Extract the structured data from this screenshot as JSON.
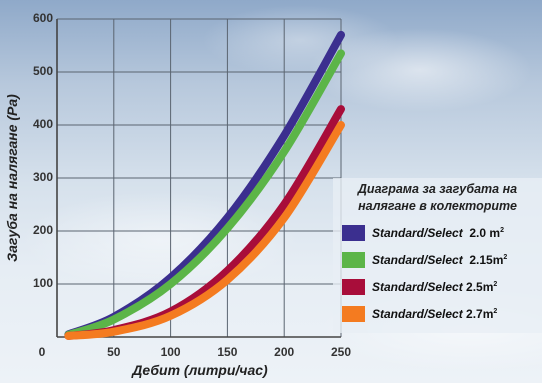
{
  "chart_data": {
    "type": "line",
    "title": "Диаграма за загубата на налягане в колекторите",
    "xlabel": "Дебит (литри/час)",
    "ylabel": "Загуба на налягане (Pa)",
    "xlim": [
      0,
      250
    ],
    "ylim": [
      0,
      600
    ],
    "xticks": [
      "0",
      "50",
      "100",
      "150",
      "200",
      "250"
    ],
    "yticks": [
      "100",
      "200",
      "300",
      "400",
      "500",
      "600"
    ],
    "grid": true,
    "legend_position": "bottom-right",
    "x": [
      10,
      50,
      100,
      150,
      200,
      250
    ],
    "series": [
      {
        "name_main": "Standard/Select",
        "name_area": "2.0 m",
        "sup": "2",
        "color": "#3b2f8f",
        "values": [
          5,
          38,
          112,
          225,
          380,
          570
        ]
      },
      {
        "name_main": "Standard/Select",
        "name_area": "2.15m",
        "sup": "2",
        "color": "#5cb548",
        "values": [
          4,
          33,
          100,
          205,
          350,
          535
        ]
      },
      {
        "name_main": "Standard/Select",
        "name_area": "2.5m",
        "sup": "2",
        "color": "#a80d3a",
        "values": [
          2,
          13,
          48,
          125,
          250,
          430
        ]
      },
      {
        "name_main": "Standard/Select",
        "name_area": "2.7m",
        "sup": "2",
        "color": "#f47b20",
        "values": [
          2,
          10,
          40,
          108,
          225,
          400
        ]
      }
    ]
  }
}
